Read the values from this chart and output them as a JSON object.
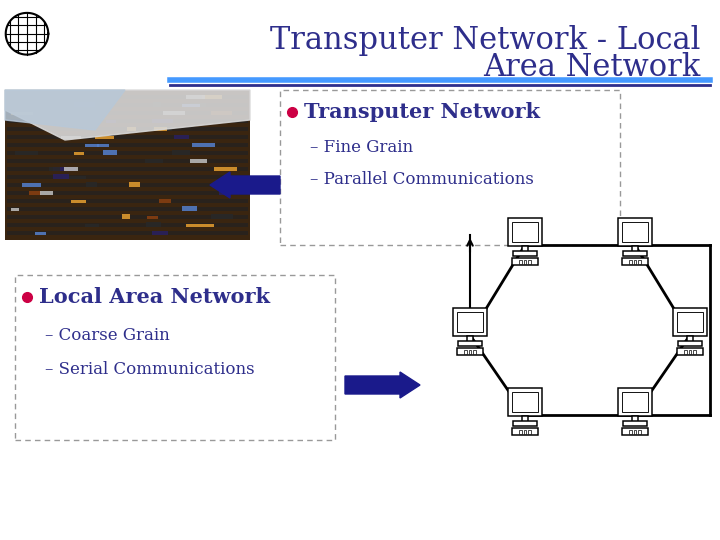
{
  "title_line1": "Transputer Network - Local",
  "title_line2": "Area Network",
  "title_color": "#2E2E8B",
  "title_fontsize": 22,
  "bg_color": "#FFFFFF",
  "separator_color1": "#4499FF",
  "separator_color2": "#2E2E8B",
  "bullet_color": "#CC0044",
  "bullet1_text": "Transputer Network",
  "bullet1_sub1": "– Fine Grain",
  "bullet1_sub2": "– Parallel Communications",
  "bullet2_text": "Local Area Network",
  "bullet2_sub1": "– Coarse Grain",
  "bullet2_sub2": "– Serial Communications",
  "box_border_color": "#999999",
  "arrow_color": "#1A1A8B",
  "text_color": "#2E2E8B",
  "sub_text_color": "#2E2E8B",
  "icon_color": "#000000"
}
